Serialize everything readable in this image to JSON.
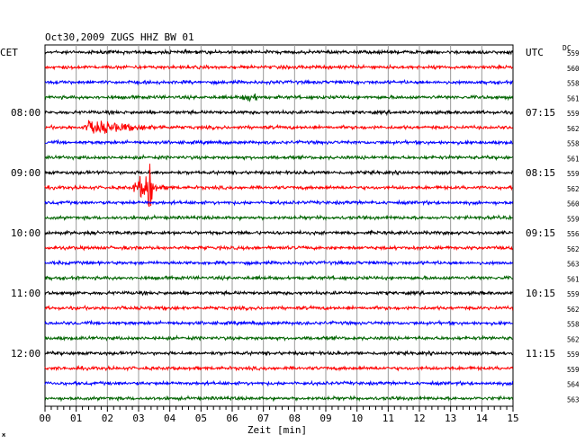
{
  "chart_data": {
    "type": "line",
    "title": "Oct30,2009   ZUGS HHZ BW 01",
    "left_zone_label": "CET",
    "right_zone_label": "UTC",
    "dc_header": "DC",
    "xlabel": "Zeit [min]",
    "x_range": [
      0,
      15
    ],
    "x_ticks": [
      "00",
      "01",
      "02",
      "03",
      "04",
      "05",
      "06",
      "07",
      "08",
      "09",
      "10",
      "11",
      "12",
      "13",
      "14",
      "15"
    ],
    "grid": true,
    "left_time_labels": [
      {
        "row": 4,
        "label": "08:00"
      },
      {
        "row": 8,
        "label": "09:00"
      },
      {
        "row": 12,
        "label": "10:00"
      },
      {
        "row": 16,
        "label": "11:00"
      },
      {
        "row": 20,
        "label": "12:00"
      }
    ],
    "right_time_labels": [
      {
        "row": 0,
        "label": "UTC"
      },
      {
        "row": 4,
        "label": "07:15"
      },
      {
        "row": 8,
        "label": "08:15"
      },
      {
        "row": 12,
        "label": "09:15"
      },
      {
        "row": 16,
        "label": "10:15"
      },
      {
        "row": 20,
        "label": "11:15"
      }
    ],
    "trace_colors": [
      "#000000",
      "#ff0000",
      "#0000ff",
      "#006400"
    ],
    "dc_values": [
      "559",
      "560",
      "558",
      "561",
      "559",
      "562",
      "558",
      "561",
      "559",
      "562",
      "560",
      "559",
      "556",
      "562",
      "563",
      "561",
      "559",
      "562",
      "558",
      "562",
      "559",
      "559",
      "564",
      "563"
    ],
    "events": [
      {
        "row": 3,
        "start_min": 6.3,
        "end_min": 6.9,
        "amplitude": "small"
      },
      {
        "row": 5,
        "start_min": 1.2,
        "end_min": 4.0,
        "amplitude": "medium"
      },
      {
        "row": 9,
        "start_min": 2.8,
        "end_min": 4.2,
        "amplitude": "large"
      }
    ],
    "corner_mark": "ж"
  }
}
